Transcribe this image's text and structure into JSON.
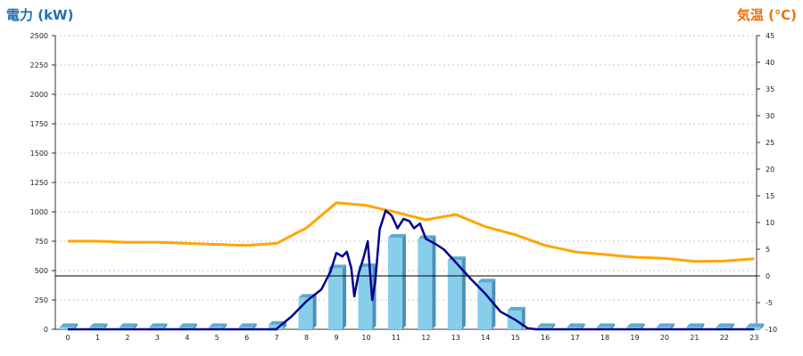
{
  "chart_data": {
    "type": "bar",
    "left_title": "電力 (kW)",
    "right_title": "気温 (℃)",
    "grid": "horizontal dashed",
    "colors": {
      "left_title": "#1f6fb2",
      "right_title": "#e8730c",
      "bar": "#87ceeb",
      "bar_side": "#4a90b8",
      "bar_top": "#5ea9d0",
      "power_line": "#00008b",
      "temperature_line": "#ffa500",
      "grid": "#c8c8c8"
    },
    "left_axis": {
      "ylim": [
        0,
        2500
      ],
      "ticks": [
        "0",
        "250",
        "500",
        "750",
        "1000",
        "1250",
        "1500",
        "1750",
        "2000",
        "2250",
        "2500"
      ]
    },
    "right_axis": {
      "ylim": [
        -10,
        45
      ],
      "ticks": [
        "-10",
        "-5",
        "0",
        "5",
        "10",
        "15",
        "20",
        "25",
        "30",
        "35",
        "40",
        "45"
      ]
    },
    "categories": [
      "0",
      "1",
      "2",
      "3",
      "4",
      "5",
      "6",
      "7",
      "8",
      "9",
      "10",
      "11",
      "12",
      "13",
      "14",
      "15",
      "16",
      "17",
      "18",
      "19",
      "20",
      "21",
      "22",
      "23"
    ],
    "bars": {
      "axis": "left",
      "values": [
        20,
        20,
        20,
        20,
        20,
        20,
        20,
        40,
        270,
        520,
        530,
        780,
        770,
        590,
        400,
        160,
        20,
        20,
        20,
        20,
        20,
        20,
        20,
        20
      ]
    },
    "power_line": {
      "axis": "left",
      "points": [
        [
          0,
          0
        ],
        [
          1,
          0
        ],
        [
          2,
          0
        ],
        [
          3,
          0
        ],
        [
          4,
          0
        ],
        [
          5,
          0
        ],
        [
          6,
          0
        ],
        [
          7,
          0
        ],
        [
          7,
          5
        ],
        [
          7.5,
          110
        ],
        [
          8,
          240
        ],
        [
          8.5,
          340
        ],
        [
          8.8,
          490
        ],
        [
          9.0,
          650
        ],
        [
          9.2,
          620
        ],
        [
          9.35,
          660
        ],
        [
          9.5,
          520
        ],
        [
          9.6,
          280
        ],
        [
          9.75,
          480
        ],
        [
          9.9,
          600
        ],
        [
          10.05,
          750
        ],
        [
          10.2,
          250
        ],
        [
          10.3,
          400
        ],
        [
          10.45,
          850
        ],
        [
          10.65,
          1010
        ],
        [
          10.85,
          970
        ],
        [
          11.05,
          860
        ],
        [
          11.25,
          940
        ],
        [
          11.45,
          920
        ],
        [
          11.6,
          860
        ],
        [
          11.8,
          900
        ],
        [
          12.0,
          770
        ],
        [
          12.3,
          730
        ],
        [
          12.6,
          680
        ],
        [
          13.0,
          570
        ],
        [
          13.5,
          430
        ],
        [
          14.0,
          300
        ],
        [
          14.5,
          150
        ],
        [
          15.0,
          80
        ],
        [
          15.4,
          10
        ],
        [
          15.7,
          0
        ],
        [
          16,
          0
        ],
        [
          17,
          0
        ],
        [
          18,
          0
        ],
        [
          19,
          0
        ],
        [
          20,
          0
        ],
        [
          21,
          0
        ],
        [
          22,
          0
        ],
        [
          23,
          0
        ]
      ]
    },
    "temperature_line": {
      "axis": "right",
      "points": [
        [
          0,
          6.5
        ],
        [
          1,
          6.5
        ],
        [
          2,
          6.3
        ],
        [
          3,
          6.3
        ],
        [
          4,
          6.1
        ],
        [
          5,
          5.9
        ],
        [
          6,
          5.7
        ],
        [
          7,
          6.1
        ],
        [
          8,
          9.0
        ],
        [
          9,
          13.7
        ],
        [
          10,
          13.2
        ],
        [
          11,
          11.9
        ],
        [
          12,
          10.5
        ],
        [
          13,
          11.5
        ],
        [
          14,
          9.2
        ],
        [
          15,
          7.7
        ],
        [
          16,
          5.7
        ],
        [
          17,
          4.5
        ],
        [
          18,
          4.0
        ],
        [
          19,
          3.5
        ],
        [
          20,
          3.3
        ],
        [
          21,
          2.7
        ],
        [
          22,
          2.8
        ],
        [
          23,
          3.2
        ]
      ]
    }
  }
}
